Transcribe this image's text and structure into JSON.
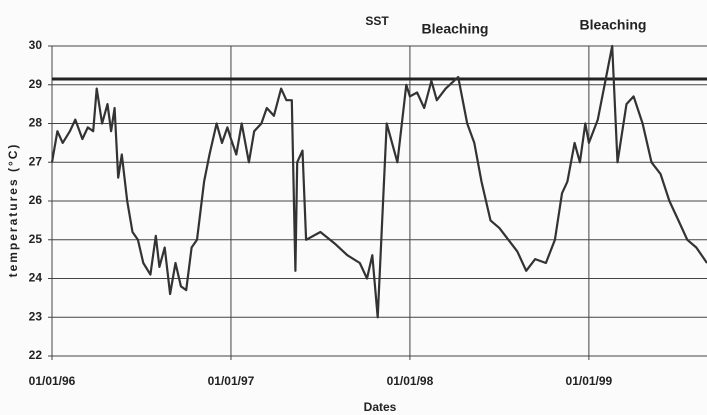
{
  "chart_data": {
    "type": "line",
    "x_label": "Dates",
    "y_label": "temperatures (°C)",
    "annotations": [
      "SST",
      "Bleaching",
      "Bleaching"
    ],
    "threshold": 29.15,
    "xlim": [
      1996,
      1999.66
    ],
    "xticks": [
      {
        "value": 1996,
        "label": "01/01/96"
      },
      {
        "value": 1997,
        "label": "01/01/97"
      },
      {
        "value": 1998,
        "label": "01/01/98"
      },
      {
        "value": 1999,
        "label": "01/01/99"
      }
    ],
    "ylim": [
      22,
      30
    ],
    "yticks": [
      22,
      23,
      24,
      25,
      26,
      27,
      28,
      29,
      30
    ],
    "grid": true,
    "x": [
      1996.0,
      1996.03,
      1996.06,
      1996.1,
      1996.13,
      1996.17,
      1996.2,
      1996.23,
      1996.25,
      1996.28,
      1996.31,
      1996.33,
      1996.35,
      1996.37,
      1996.39,
      1996.42,
      1996.45,
      1996.48,
      1996.51,
      1996.55,
      1996.58,
      1996.6,
      1996.63,
      1996.66,
      1996.69,
      1996.72,
      1996.75,
      1996.78,
      1996.81,
      1996.85,
      1996.88,
      1996.92,
      1996.95,
      1996.98,
      1997.0,
      1997.03,
      1997.06,
      1997.1,
      1997.13,
      1997.17,
      1997.2,
      1997.24,
      1997.28,
      1997.31,
      1997.34,
      1997.36,
      1997.37,
      1997.4,
      1997.42,
      1997.5,
      1997.58,
      1997.65,
      1997.72,
      1997.76,
      1997.79,
      1997.82,
      1997.85,
      1997.87,
      1997.93,
      1997.98,
      1998.0,
      1998.04,
      1998.08,
      1998.12,
      1998.15,
      1998.2,
      1998.27,
      1998.32,
      1998.36,
      1998.4,
      1998.45,
      1998.5,
      1998.55,
      1998.6,
      1998.65,
      1998.7,
      1998.76,
      1998.81,
      1998.85,
      1998.88,
      1998.92,
      1998.95,
      1998.98,
      1999.0,
      1999.05,
      1999.13,
      1999.16,
      1999.21,
      1999.25,
      1999.3,
      1999.35,
      1999.4,
      1999.45,
      1999.5,
      1999.55,
      1999.6,
      1999.66
    ],
    "series": [
      {
        "name": "SST",
        "color": "#333333",
        "values": [
          27.0,
          27.8,
          27.5,
          27.8,
          28.1,
          27.6,
          27.9,
          27.8,
          28.9,
          28.0,
          28.5,
          27.8,
          28.4,
          26.6,
          27.2,
          26.0,
          25.2,
          25.0,
          24.4,
          24.1,
          25.1,
          24.3,
          24.8,
          23.6,
          24.4,
          23.8,
          23.7,
          24.8,
          25.0,
          26.5,
          27.2,
          28.0,
          27.5,
          27.9,
          27.6,
          27.2,
          28.0,
          27.0,
          27.8,
          28.0,
          28.4,
          28.2,
          28.9,
          28.6,
          28.6,
          24.2,
          27.0,
          27.3,
          25.0,
          25.2,
          24.9,
          24.6,
          24.4,
          24.0,
          24.6,
          23.0,
          26.0,
          28.0,
          27.0,
          29.0,
          28.7,
          28.8,
          28.4,
          29.1,
          28.6,
          28.9,
          29.2,
          28.0,
          27.5,
          26.5,
          25.5,
          25.3,
          25.0,
          24.7,
          24.2,
          24.5,
          24.4,
          25.0,
          26.2,
          26.5,
          27.5,
          27.0,
          28.0,
          27.5,
          28.1,
          30.0,
          27.0,
          28.5,
          28.7,
          28.0,
          27.0,
          26.7,
          26.0,
          25.5,
          25.0,
          24.8,
          24.4
        ]
      }
    ]
  }
}
